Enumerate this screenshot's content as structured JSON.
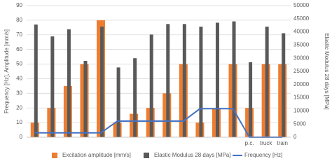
{
  "chart_data": {
    "type": "bar",
    "categories": [
      null,
      null,
      null,
      null,
      null,
      null,
      null,
      null,
      null,
      null,
      null,
      null,
      null,
      "p.c.",
      "truck",
      "train"
    ],
    "series": [
      {
        "name": "Excitation amplitude [mm/s]",
        "type": "bar",
        "color": "#ed7d31",
        "values": [
          10,
          20,
          35,
          50,
          80,
          10,
          16,
          20,
          30,
          50,
          10,
          20,
          50,
          20,
          50,
          50
        ]
      },
      {
        "name": "Elastic Modulus 28 days [MPa]",
        "type": "bar",
        "axis": "y2",
        "color": "#595959",
        "values": [
          42800,
          38300,
          41000,
          29000,
          42000,
          26500,
          30000,
          39000,
          43000,
          43000,
          42000,
          43500,
          44000,
          28500,
          42000,
          39500
        ]
      },
      {
        "name": "Frequency [Hz]",
        "type": "line",
        "color": "#4472c4",
        "values": [
          3,
          3,
          3,
          3,
          3,
          11,
          11,
          11,
          11,
          11,
          19.5,
          19.5,
          19.5,
          0,
          0,
          0
        ]
      }
    ],
    "ylabel": "Frequency [Hz], Amplitude [mm/s]",
    "y2label": "Elastic Modulus 28 days [MPa]",
    "ylim": [
      0,
      90
    ],
    "yticks": [
      0,
      10,
      20,
      30,
      40,
      50,
      60,
      70,
      80,
      90
    ],
    "y2lim": [
      0,
      50000
    ],
    "y2ticks": [
      0,
      5000,
      10000,
      15000,
      20000,
      25000,
      30000,
      35000,
      40000,
      45000,
      50000
    ],
    "grid": true,
    "legend": "bottom"
  }
}
